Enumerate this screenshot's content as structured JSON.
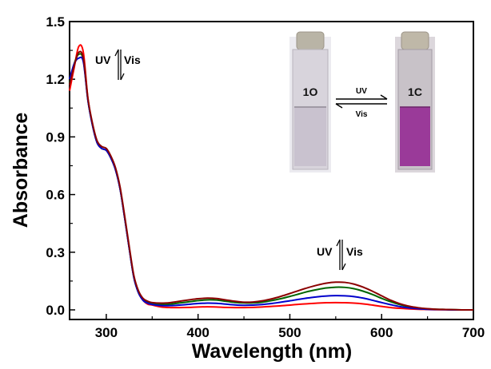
{
  "chart_data": {
    "type": "line",
    "xlabel": "Wavelength (nm)",
    "ylabel": "Absorbance",
    "xlim": [
      260,
      700
    ],
    "ylim": [
      -0.05,
      1.5
    ],
    "xticks": [
      300,
      400,
      500,
      600,
      700
    ],
    "yticks": [
      0.0,
      0.3,
      0.6,
      0.9,
      1.2,
      1.5
    ],
    "ytick_labels": [
      "0.0",
      "0.3",
      "0.6",
      "0.9",
      "1.2",
      "1.5"
    ],
    "grid": false,
    "annotations": {
      "uv_vis_top": {
        "uv": "UV",
        "vis": "Vis"
      },
      "uv_vis_bottom": {
        "uv": "UV",
        "vis": "Vis"
      }
    },
    "inset": {
      "left_vial_label": "1O",
      "right_vial_label": "1C",
      "arrow_top_label": "UV",
      "arrow_bottom_label": "Vis",
      "left_solution_color": "#c9c2cf",
      "right_solution_color": "#9a3a99"
    },
    "series": [
      {
        "color": "#ff0000",
        "x": [
          260,
          265,
          270,
          275,
          280,
          285,
          290,
          295,
          300,
          305,
          310,
          315,
          320,
          325,
          330,
          335,
          340,
          345,
          350,
          360,
          370,
          380,
          390,
          400,
          410,
          420,
          430,
          440,
          450,
          460,
          470,
          480,
          490,
          500,
          510,
          520,
          530,
          540,
          550,
          560,
          570,
          580,
          590,
          600,
          610,
          620,
          630,
          640,
          650,
          660,
          670,
          680,
          690,
          700
        ],
        "y": [
          1.14,
          1.26,
          1.37,
          1.34,
          1.1,
          0.96,
          0.87,
          0.84,
          0.83,
          0.79,
          0.73,
          0.63,
          0.48,
          0.32,
          0.17,
          0.09,
          0.05,
          0.03,
          0.025,
          0.015,
          0.012,
          0.012,
          0.013,
          0.015,
          0.016,
          0.015,
          0.013,
          0.012,
          0.012,
          0.013,
          0.015,
          0.018,
          0.021,
          0.025,
          0.029,
          0.032,
          0.035,
          0.037,
          0.038,
          0.037,
          0.035,
          0.031,
          0.025,
          0.018,
          0.012,
          0.008,
          0.005,
          0.003,
          0.002,
          0.001,
          0.001,
          0.0,
          0.0,
          0.0
        ]
      },
      {
        "color": "#006400",
        "x": [
          260,
          265,
          270,
          275,
          280,
          285,
          290,
          295,
          300,
          305,
          310,
          315,
          320,
          325,
          330,
          335,
          340,
          345,
          350,
          360,
          370,
          380,
          390,
          400,
          410,
          420,
          430,
          440,
          450,
          460,
          470,
          480,
          490,
          500,
          510,
          520,
          530,
          540,
          550,
          560,
          570,
          580,
          590,
          600,
          610,
          620,
          630,
          640,
          650,
          660,
          670,
          680,
          690,
          700
        ],
        "y": [
          1.18,
          1.28,
          1.33,
          1.3,
          1.09,
          0.96,
          0.87,
          0.84,
          0.83,
          0.79,
          0.73,
          0.63,
          0.48,
          0.32,
          0.17,
          0.09,
          0.055,
          0.04,
          0.033,
          0.028,
          0.03,
          0.036,
          0.042,
          0.048,
          0.052,
          0.051,
          0.045,
          0.039,
          0.036,
          0.036,
          0.04,
          0.048,
          0.058,
          0.07,
          0.083,
          0.096,
          0.106,
          0.114,
          0.118,
          0.117,
          0.11,
          0.097,
          0.08,
          0.06,
          0.042,
          0.027,
          0.016,
          0.009,
          0.005,
          0.003,
          0.002,
          0.001,
          0.0,
          0.0
        ]
      },
      {
        "color": "#0000cc",
        "x": [
          260,
          265,
          270,
          275,
          280,
          285,
          290,
          295,
          300,
          305,
          310,
          315,
          320,
          325,
          330,
          335,
          340,
          345,
          350,
          360,
          370,
          380,
          390,
          400,
          410,
          420,
          430,
          440,
          450,
          460,
          470,
          480,
          490,
          500,
          510,
          520,
          530,
          540,
          550,
          560,
          570,
          580,
          590,
          600,
          610,
          620,
          630,
          640,
          650,
          660,
          670,
          680,
          690,
          700
        ],
        "y": [
          1.2,
          1.28,
          1.31,
          1.29,
          1.09,
          0.96,
          0.87,
          0.84,
          0.83,
          0.79,
          0.73,
          0.63,
          0.48,
          0.32,
          0.17,
          0.09,
          0.05,
          0.035,
          0.028,
          0.022,
          0.022,
          0.025,
          0.029,
          0.033,
          0.035,
          0.034,
          0.03,
          0.026,
          0.024,
          0.025,
          0.028,
          0.033,
          0.04,
          0.047,
          0.055,
          0.062,
          0.068,
          0.072,
          0.074,
          0.073,
          0.069,
          0.061,
          0.05,
          0.038,
          0.027,
          0.017,
          0.01,
          0.006,
          0.003,
          0.002,
          0.001,
          0.0,
          0.0,
          0.0
        ]
      },
      {
        "color": "#8b0000",
        "x": [
          260,
          265,
          270,
          275,
          280,
          285,
          290,
          295,
          300,
          305,
          310,
          315,
          320,
          325,
          330,
          335,
          340,
          345,
          350,
          360,
          370,
          380,
          390,
          400,
          410,
          420,
          430,
          440,
          450,
          460,
          470,
          480,
          490,
          500,
          510,
          520,
          530,
          540,
          550,
          560,
          570,
          580,
          590,
          600,
          610,
          620,
          630,
          640,
          650,
          660,
          670,
          680,
          690,
          700
        ],
        "y": [
          1.17,
          1.27,
          1.34,
          1.31,
          1.1,
          0.97,
          0.88,
          0.85,
          0.84,
          0.8,
          0.74,
          0.64,
          0.49,
          0.33,
          0.18,
          0.1,
          0.06,
          0.045,
          0.038,
          0.035,
          0.038,
          0.045,
          0.052,
          0.058,
          0.061,
          0.059,
          0.052,
          0.045,
          0.04,
          0.041,
          0.047,
          0.057,
          0.07,
          0.085,
          0.101,
          0.116,
          0.129,
          0.139,
          0.144,
          0.143,
          0.134,
          0.118,
          0.097,
          0.073,
          0.05,
          0.032,
          0.019,
          0.011,
          0.006,
          0.003,
          0.002,
          0.001,
          0.0,
          0.0
        ]
      }
    ]
  }
}
